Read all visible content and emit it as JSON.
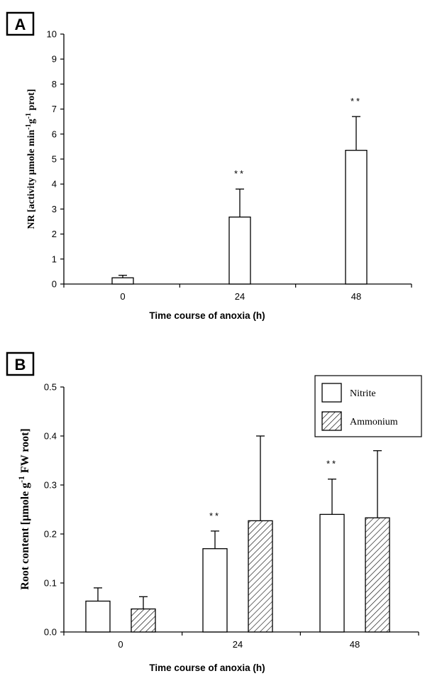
{
  "chart_data": [
    {
      "panel_label": "A",
      "type": "bar",
      "categories": [
        "0",
        "24",
        "48"
      ],
      "series": [
        {
          "values": [
            0.25,
            2.68,
            5.35
          ],
          "errors": [
            0.1,
            1.12,
            1.35
          ]
        }
      ],
      "significance": [
        "",
        "**",
        "**"
      ],
      "xlabel": "Time course of anoxia (h)",
      "ylabel": "NR [activity µmole min-1g-1 prot]",
      "ylim": [
        0,
        10
      ],
      "yticks": [
        "0",
        "1",
        "2",
        "3",
        "4",
        "5",
        "6",
        "7",
        "8",
        "9",
        "10"
      ]
    },
    {
      "panel_label": "B",
      "type": "bar",
      "categories": [
        "0",
        "24",
        "48"
      ],
      "series": [
        {
          "name": "Nitrite",
          "values": [
            0.063,
            0.17,
            0.24
          ],
          "errors": [
            0.027,
            0.036,
            0.072
          ]
        },
        {
          "name": "Ammonium",
          "values": [
            0.047,
            0.227,
            0.233
          ],
          "errors": [
            0.025,
            0.173,
            0.137
          ]
        }
      ],
      "significance": [
        "",
        "**",
        "**"
      ],
      "xlabel": "Time course of anoxia (h)",
      "ylabel": "Root content [µmole g-1 FW root]",
      "ylim": [
        0,
        0.5
      ],
      "yticks": [
        "0.0",
        "0.1",
        "0.2",
        "0.3",
        "0.4",
        "0.5"
      ],
      "legend_position": "top-right"
    }
  ]
}
